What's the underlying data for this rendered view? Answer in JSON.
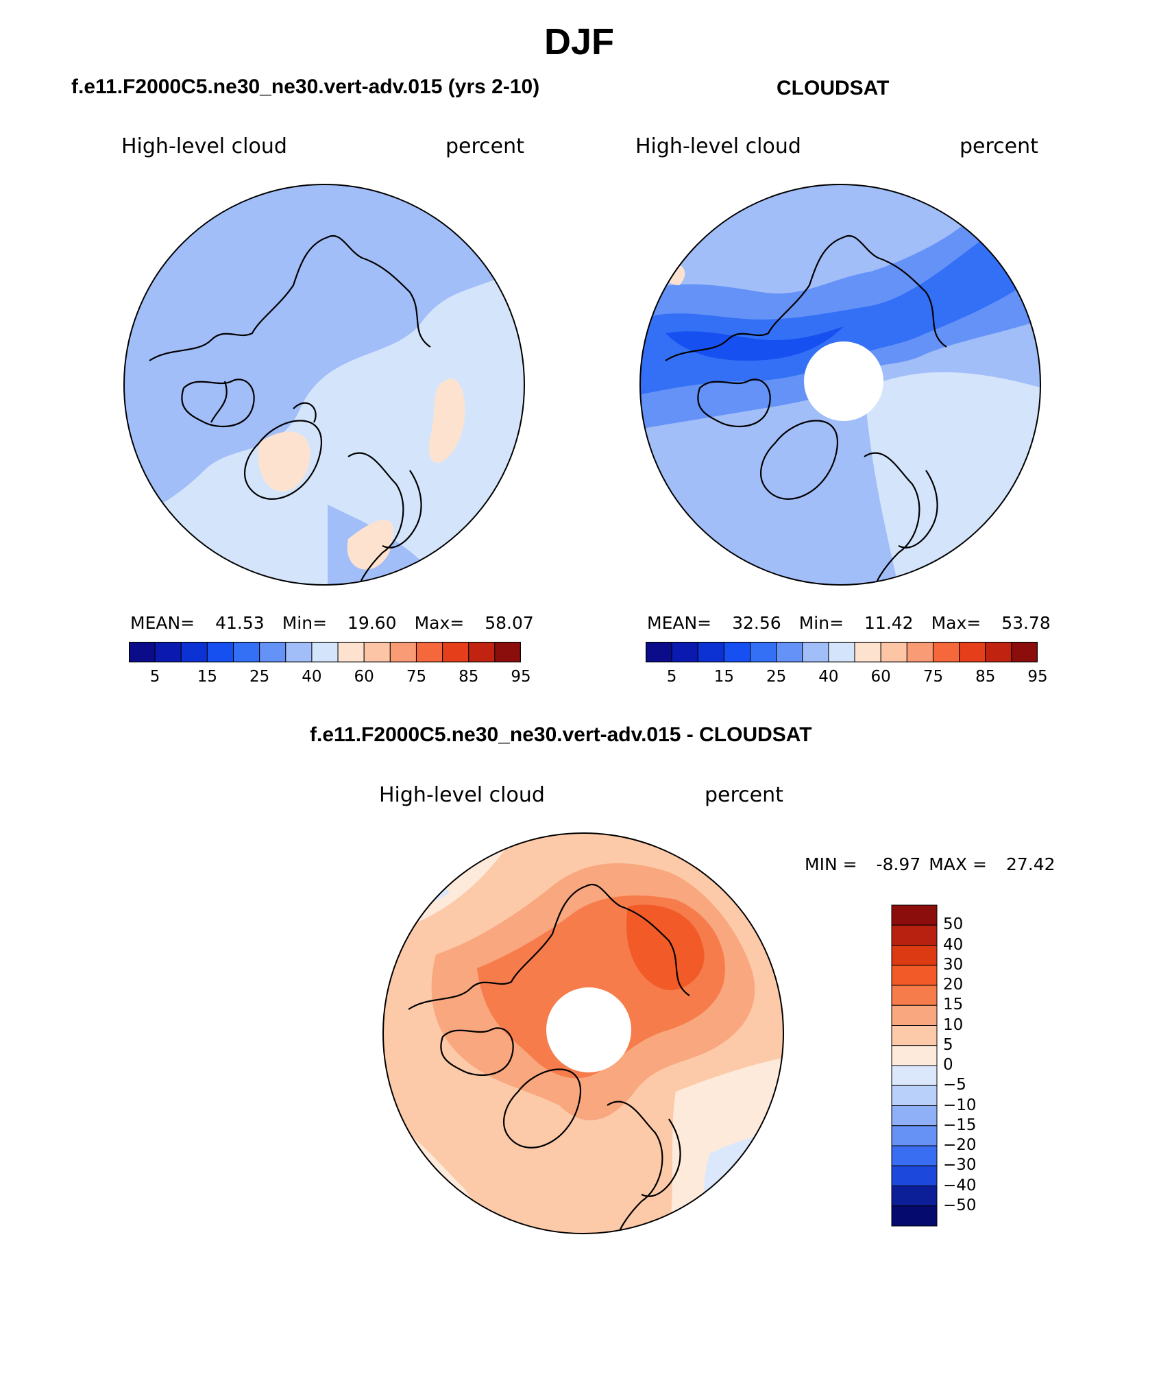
{
  "figure": {
    "title": "DJF"
  },
  "panels": [
    {
      "id": "model",
      "header": "f.e11.F2000C5.ne30_ne30.vert-adv.015 (yrs 2-10)",
      "left_label": "High-level cloud",
      "right_label": "percent",
      "stats": {
        "mean_label": "MEAN=",
        "mean": "41.53",
        "min_label": "Min=",
        "min": "19.60",
        "max_label": "Max=",
        "max": "58.07"
      },
      "pole_hole": false
    },
    {
      "id": "obs",
      "header": "CLOUDSAT",
      "left_label": "High-level cloud",
      "right_label": "percent",
      "stats": {
        "mean_label": "MEAN=",
        "mean": "32.56",
        "min_label": "Min=",
        "min": "11.42",
        "max_label": "Max=",
        "max": "53.78"
      },
      "pole_hole": true
    }
  ],
  "diff_panel": {
    "header": "f.e11.F2000C5.ne30_ne30.vert-adv.015 - CLOUDSAT",
    "left_label": "High-level cloud",
    "right_label": "percent",
    "min_label": "MIN =",
    "min": "-8.97",
    "max_label": "MAX =",
    "max": "27.42"
  },
  "abs_colorbar": {
    "ticks": [
      "5",
      "15",
      "25",
      "40",
      "60",
      "75",
      "85",
      "95"
    ],
    "colors": [
      "#0a0c8a",
      "#0a1ab0",
      "#0d32d4",
      "#1650f0",
      "#3470f5",
      "#6492f7",
      "#a2bef8",
      "#d4e5fb",
      "#fde3cf",
      "#fcc5a6",
      "#f99b75",
      "#f5683c",
      "#e43e1a",
      "#c02410",
      "#8c0e0c"
    ]
  },
  "diff_colorbar": {
    "labels_top_to_bottom": [
      "50",
      "40",
      "30",
      "20",
      "15",
      "10",
      "5",
      "0",
      "−5",
      "−10",
      "−15",
      "−20",
      "−30",
      "−40",
      "−50"
    ],
    "colors_top_to_bottom": [
      "#8c0e0c",
      "#b82110",
      "#dc3a12",
      "#f25a28",
      "#f67c4c",
      "#f9a77e",
      "#fccaa8",
      "#fdeadb",
      "#dbe8fb",
      "#b9d0fa",
      "#8fb0f7",
      "#6692f5",
      "#3a6ef2",
      "#1c48dc",
      "#0c1f98",
      "#050a6e"
    ]
  },
  "colors": {
    "coastline": "#000000",
    "border": "#000000"
  }
}
